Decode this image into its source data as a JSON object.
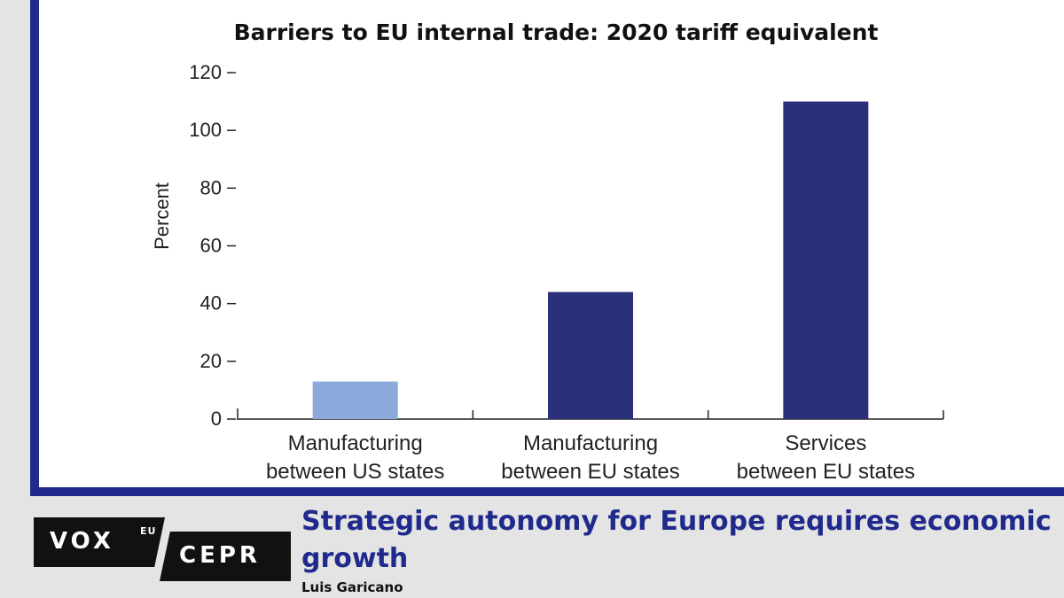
{
  "chart_data": {
    "type": "bar",
    "title": "Barriers to EU internal trade: 2020 tariff equivalent",
    "ylabel": "Percent",
    "xlabel": "",
    "categories": [
      [
        "Manufacturing",
        "between US states"
      ],
      [
        "Manufacturing",
        "between EU states"
      ],
      [
        "Services",
        "between EU states"
      ]
    ],
    "values": [
      13,
      44,
      110
    ],
    "bar_colors": [
      "#8aaadb",
      "#2a317a",
      "#2a317a"
    ],
    "ylim": [
      0,
      120
    ],
    "yticks": [
      0,
      20,
      40,
      60,
      80,
      100,
      120
    ],
    "grid": false,
    "legend": "none"
  },
  "colors": {
    "frame": "#1f2a8c",
    "headline": "#1f2a8c"
  },
  "footer": {
    "logo_vox": "VOX",
    "logo_eu": "EU",
    "logo_cepr": "CEPR",
    "article_title": "Strategic autonomy for Europe requires economic growth",
    "author": "Luis Garicano"
  }
}
